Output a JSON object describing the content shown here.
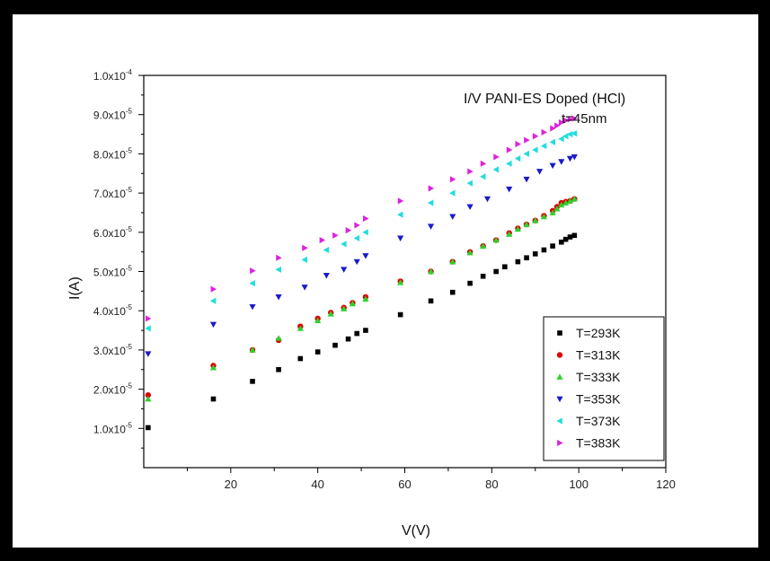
{
  "chart_data": {
    "type": "scatter",
    "title_lines": [
      "I/V PANI-ES Doped (HCl)",
      "t=45nm"
    ],
    "xlabel": "V(V)",
    "ylabel": "I(A)",
    "xlim": [
      0,
      120
    ],
    "ylim": [
      0,
      0.0001
    ],
    "x_ticks": [
      20,
      40,
      60,
      80,
      100,
      120
    ],
    "y_ticks": [
      {
        "value": 1e-05,
        "mantissa": "1.0x10",
        "exp": "-5"
      },
      {
        "value": 2e-05,
        "mantissa": "2.0x10",
        "exp": "-5"
      },
      {
        "value": 3e-05,
        "mantissa": "3.0x10",
        "exp": "-5"
      },
      {
        "value": 4e-05,
        "mantissa": "4.0x10",
        "exp": "-5"
      },
      {
        "value": 5e-05,
        "mantissa": "5.0x10",
        "exp": "-5"
      },
      {
        "value": 6e-05,
        "mantissa": "6.0x10",
        "exp": "-5"
      },
      {
        "value": 7e-05,
        "mantissa": "7.0x10",
        "exp": "-5"
      },
      {
        "value": 8e-05,
        "mantissa": "8.0x10",
        "exp": "-5"
      },
      {
        "value": 9e-05,
        "mantissa": "9.0x10",
        "exp": "-5"
      },
      {
        "value": 0.0001,
        "mantissa": "1.0x10",
        "exp": "-4"
      }
    ],
    "grid": false,
    "legend_position": "bottom-right",
    "series": [
      {
        "name": "T=293K",
        "marker": "square",
        "color": "#000000",
        "x": [
          1,
          16,
          25,
          31,
          36,
          40,
          44,
          47,
          49,
          51,
          59,
          66,
          71,
          75,
          78,
          81,
          83,
          86,
          88,
          90,
          92,
          94,
          96,
          97,
          98,
          99
        ],
        "y": [
          1.02e-05,
          1.75e-05,
          2.2e-05,
          2.5e-05,
          2.78e-05,
          2.95e-05,
          3.12e-05,
          3.28e-05,
          3.42e-05,
          3.5e-05,
          3.9e-05,
          4.25e-05,
          4.47e-05,
          4.7e-05,
          4.88e-05,
          5e-05,
          5.12e-05,
          5.25e-05,
          5.35e-05,
          5.45e-05,
          5.55e-05,
          5.65e-05,
          5.75e-05,
          5.82e-05,
          5.88e-05,
          5.92e-05
        ]
      },
      {
        "name": "T=313K",
        "marker": "circle",
        "color": "#e00000",
        "x": [
          1,
          16,
          25,
          31,
          36,
          40,
          43,
          46,
          48,
          51,
          59,
          66,
          71,
          75,
          78,
          81,
          84,
          86,
          88,
          90,
          92,
          94,
          95,
          96,
          97,
          98,
          99
        ],
        "y": [
          1.85e-05,
          2.6e-05,
          3e-05,
          3.25e-05,
          3.6e-05,
          3.8e-05,
          3.95e-05,
          4.08e-05,
          4.2e-05,
          4.35e-05,
          4.75e-05,
          5e-05,
          5.25e-05,
          5.5e-05,
          5.65e-05,
          5.8e-05,
          5.98e-05,
          6.1e-05,
          6.2e-05,
          6.3e-05,
          6.42e-05,
          6.55e-05,
          6.65e-05,
          6.75e-05,
          6.78e-05,
          6.8e-05,
          6.85e-05
        ]
      },
      {
        "name": "T=333K",
        "marker": "triangle-up",
        "color": "#2ed12e",
        "x": [
          1,
          16,
          25,
          31,
          36,
          40,
          43,
          46,
          48,
          51,
          59,
          66,
          71,
          75,
          78,
          81,
          84,
          86,
          88,
          90,
          92,
          94,
          95,
          96,
          97,
          98,
          99
        ],
        "y": [
          1.75e-05,
          2.55e-05,
          3e-05,
          3.3e-05,
          3.55e-05,
          3.75e-05,
          3.92e-05,
          4.05e-05,
          4.18e-05,
          4.3e-05,
          4.72e-05,
          5e-05,
          5.25e-05,
          5.48e-05,
          5.65e-05,
          5.8e-05,
          5.95e-05,
          6.08e-05,
          6.2e-05,
          6.3e-05,
          6.4e-05,
          6.5e-05,
          6.6e-05,
          6.7e-05,
          6.75e-05,
          6.8e-05,
          6.85e-05
        ]
      },
      {
        "name": "T=353K",
        "marker": "triangle-down",
        "color": "#1a1acc",
        "x": [
          1,
          16,
          25,
          31,
          37,
          42,
          46,
          49,
          51,
          59,
          66,
          71,
          75,
          79,
          84,
          88,
          91,
          94,
          96,
          98,
          99
        ],
        "y": [
          2.9e-05,
          3.65e-05,
          4.1e-05,
          4.35e-05,
          4.6e-05,
          4.9e-05,
          5.05e-05,
          5.25e-05,
          5.4e-05,
          5.85e-05,
          6.15e-05,
          6.4e-05,
          6.65e-05,
          6.85e-05,
          7.1e-05,
          7.35e-05,
          7.55e-05,
          7.7e-05,
          7.8e-05,
          7.88e-05,
          7.92e-05
        ]
      },
      {
        "name": "T=373K",
        "marker": "triangle-left",
        "color": "#22dddd",
        "x": [
          1,
          16,
          25,
          31,
          37,
          42,
          46,
          49,
          51,
          59,
          66,
          71,
          75,
          78,
          81,
          84,
          86,
          88,
          90,
          92,
          94,
          96,
          97,
          98,
          99
        ],
        "y": [
          3.55e-05,
          4.25e-05,
          4.7e-05,
          5.05e-05,
          5.3e-05,
          5.55e-05,
          5.7e-05,
          5.85e-05,
          6e-05,
          6.45e-05,
          6.75e-05,
          7e-05,
          7.25e-05,
          7.42e-05,
          7.6e-05,
          7.75e-05,
          7.88e-05,
          8e-05,
          8.1e-05,
          8.2e-05,
          8.3e-05,
          8.38e-05,
          8.45e-05,
          8.5e-05,
          8.52e-05
        ]
      },
      {
        "name": "T=383K",
        "marker": "triangle-right",
        "color": "#dd22dd",
        "x": [
          1,
          16,
          25,
          31,
          37,
          41,
          44,
          47,
          49,
          51,
          59,
          66,
          71,
          75,
          78,
          81,
          84,
          86,
          88,
          90,
          92,
          94,
          95,
          96,
          97,
          98,
          99
        ],
        "y": [
          3.8e-05,
          4.55e-05,
          5.02e-05,
          5.35e-05,
          5.6e-05,
          5.8e-05,
          5.92e-05,
          6.05e-05,
          6.18e-05,
          6.35e-05,
          6.8e-05,
          7.12e-05,
          7.35e-05,
          7.55e-05,
          7.75e-05,
          7.92e-05,
          8.1e-05,
          8.25e-05,
          8.35e-05,
          8.45e-05,
          8.55e-05,
          8.65e-05,
          8.72e-05,
          8.8e-05,
          8.85e-05,
          8.88e-05,
          8.9e-05
        ]
      }
    ]
  }
}
